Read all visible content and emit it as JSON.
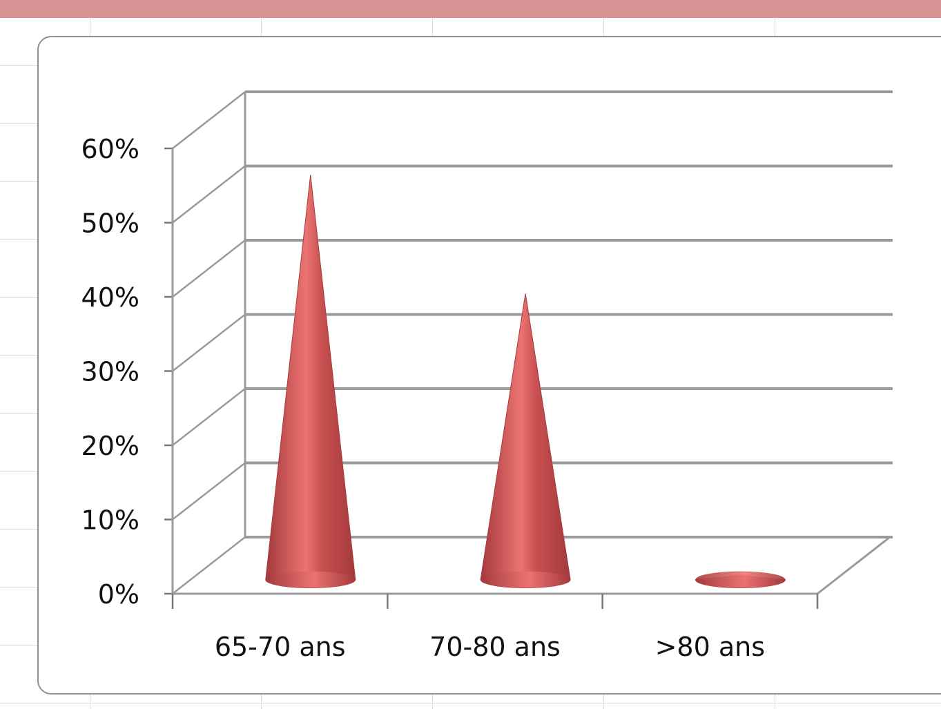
{
  "colors": {
    "cone_base": "#c85050",
    "cone_highlight": "#ec7472",
    "cone_shadow": "#a43a3c",
    "gridline": "#9a9a9a",
    "header_band": "#d89293"
  },
  "chart_data": {
    "type": "bar",
    "bar_shape": "cone-3d",
    "categories": [
      "65-70 ans",
      "70-80 ans",
      ">80 ans"
    ],
    "values": [
      0.57,
      0.41,
      0.03
    ],
    "ylim": [
      0,
      0.6
    ],
    "yticks": [
      "0%",
      "10%",
      "20%",
      "30%",
      "40%",
      "50%",
      "60%"
    ],
    "title": "",
    "xlabel": "",
    "ylabel": "",
    "grid": true,
    "legend": "none"
  }
}
